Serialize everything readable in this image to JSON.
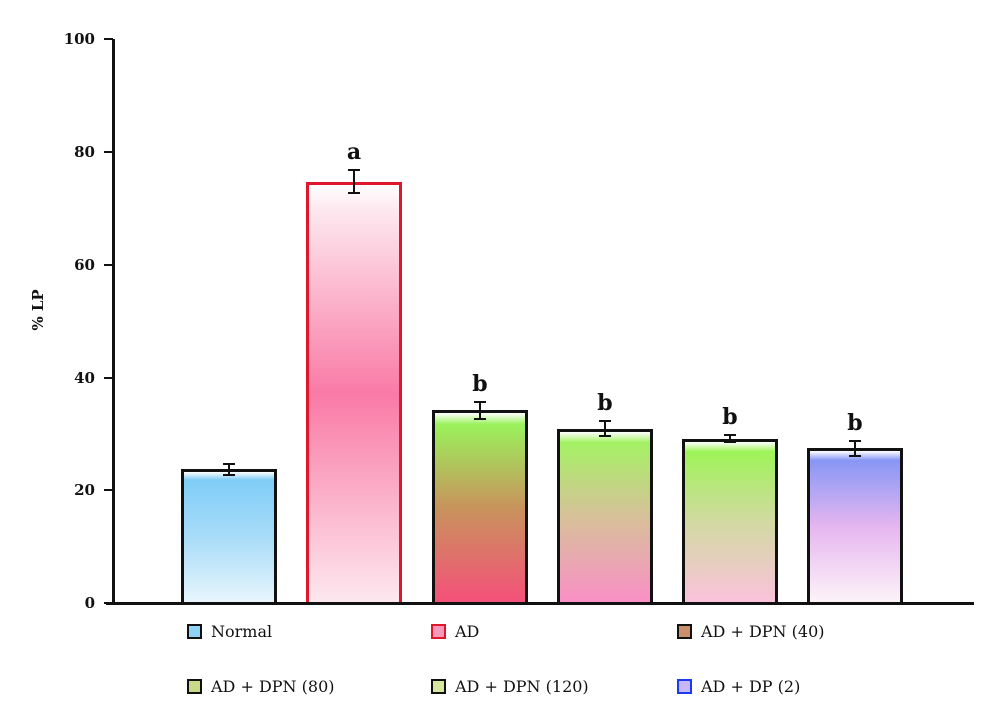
{
  "chart_data": {
    "type": "bar",
    "title": "",
    "xlabel": "",
    "ylabel": "% LP",
    "ylim": [
      0,
      100
    ],
    "yticks": [
      0,
      20,
      40,
      60,
      80,
      100
    ],
    "grid": false,
    "legend_position": "bottom",
    "categories": [
      "Normal",
      "AD",
      "AD + DPN (40)",
      "AD + DPN (80)",
      "AD + DPN (120)",
      "AD + DP (2)"
    ],
    "values": [
      23.7,
      74.7,
      34.2,
      30.9,
      29.1,
      27.4
    ],
    "errors": [
      1.2,
      2.2,
      1.7,
      1.5,
      0.8,
      1.5
    ],
    "annotations": [
      "",
      "a",
      "b",
      "b",
      "b",
      "b"
    ],
    "colors": {
      "Normal": [
        "#e8f6fd",
        "#a8dcf8",
        "#7fcdf7"
      ],
      "AD": [
        "#fde8ef",
        "#f97aa6",
        "#fde8ef"
      ],
      "AD + DPN (40)": [
        "#f5507a",
        "#c8935c",
        "#9af25c"
      ],
      "AD + DPN (80)": [
        "#f98fc6",
        "#d8c09a",
        "#a4f264"
      ],
      "AD + DPN (120)": [
        "#fbc2dc",
        "#d2d9a2",
        "#9ef458"
      ],
      "AD + DP (2)": [
        "#fdf4f8",
        "#e6b6f0",
        "#8797f5"
      ]
    },
    "border_colors": {
      "Normal": "#111111",
      "AD": "#e0162b",
      "AD + DPN (40)": "#111111",
      "AD + DPN (80)": "#111111",
      "AD + DPN (120)": "#111111",
      "AD + DP (2)": "#111111"
    }
  },
  "axis": {
    "ylabel": "% LP",
    "yticks": [
      "0",
      "20",
      "40",
      "60",
      "80",
      "100"
    ]
  },
  "legend": [
    {
      "label": "Normal",
      "swatch": "#8fd3f7",
      "border": "#111111"
    },
    {
      "label": "AD",
      "swatch": "#f79ab9",
      "border": "#e0162b"
    },
    {
      "label": "AD + DPN (40)",
      "swatch": "#c9906a",
      "border": "#111111"
    },
    {
      "label": "AD + DPN (80)",
      "swatch": "#c9d98a",
      "border": "#111111"
    },
    {
      "label": "AD + DPN (120)",
      "swatch": "#d6e8a0",
      "border": "#111111"
    },
    {
      "label": "AD + DP (2)",
      "swatch": "#c9b6f5",
      "border": "#1a3cf0"
    }
  ]
}
